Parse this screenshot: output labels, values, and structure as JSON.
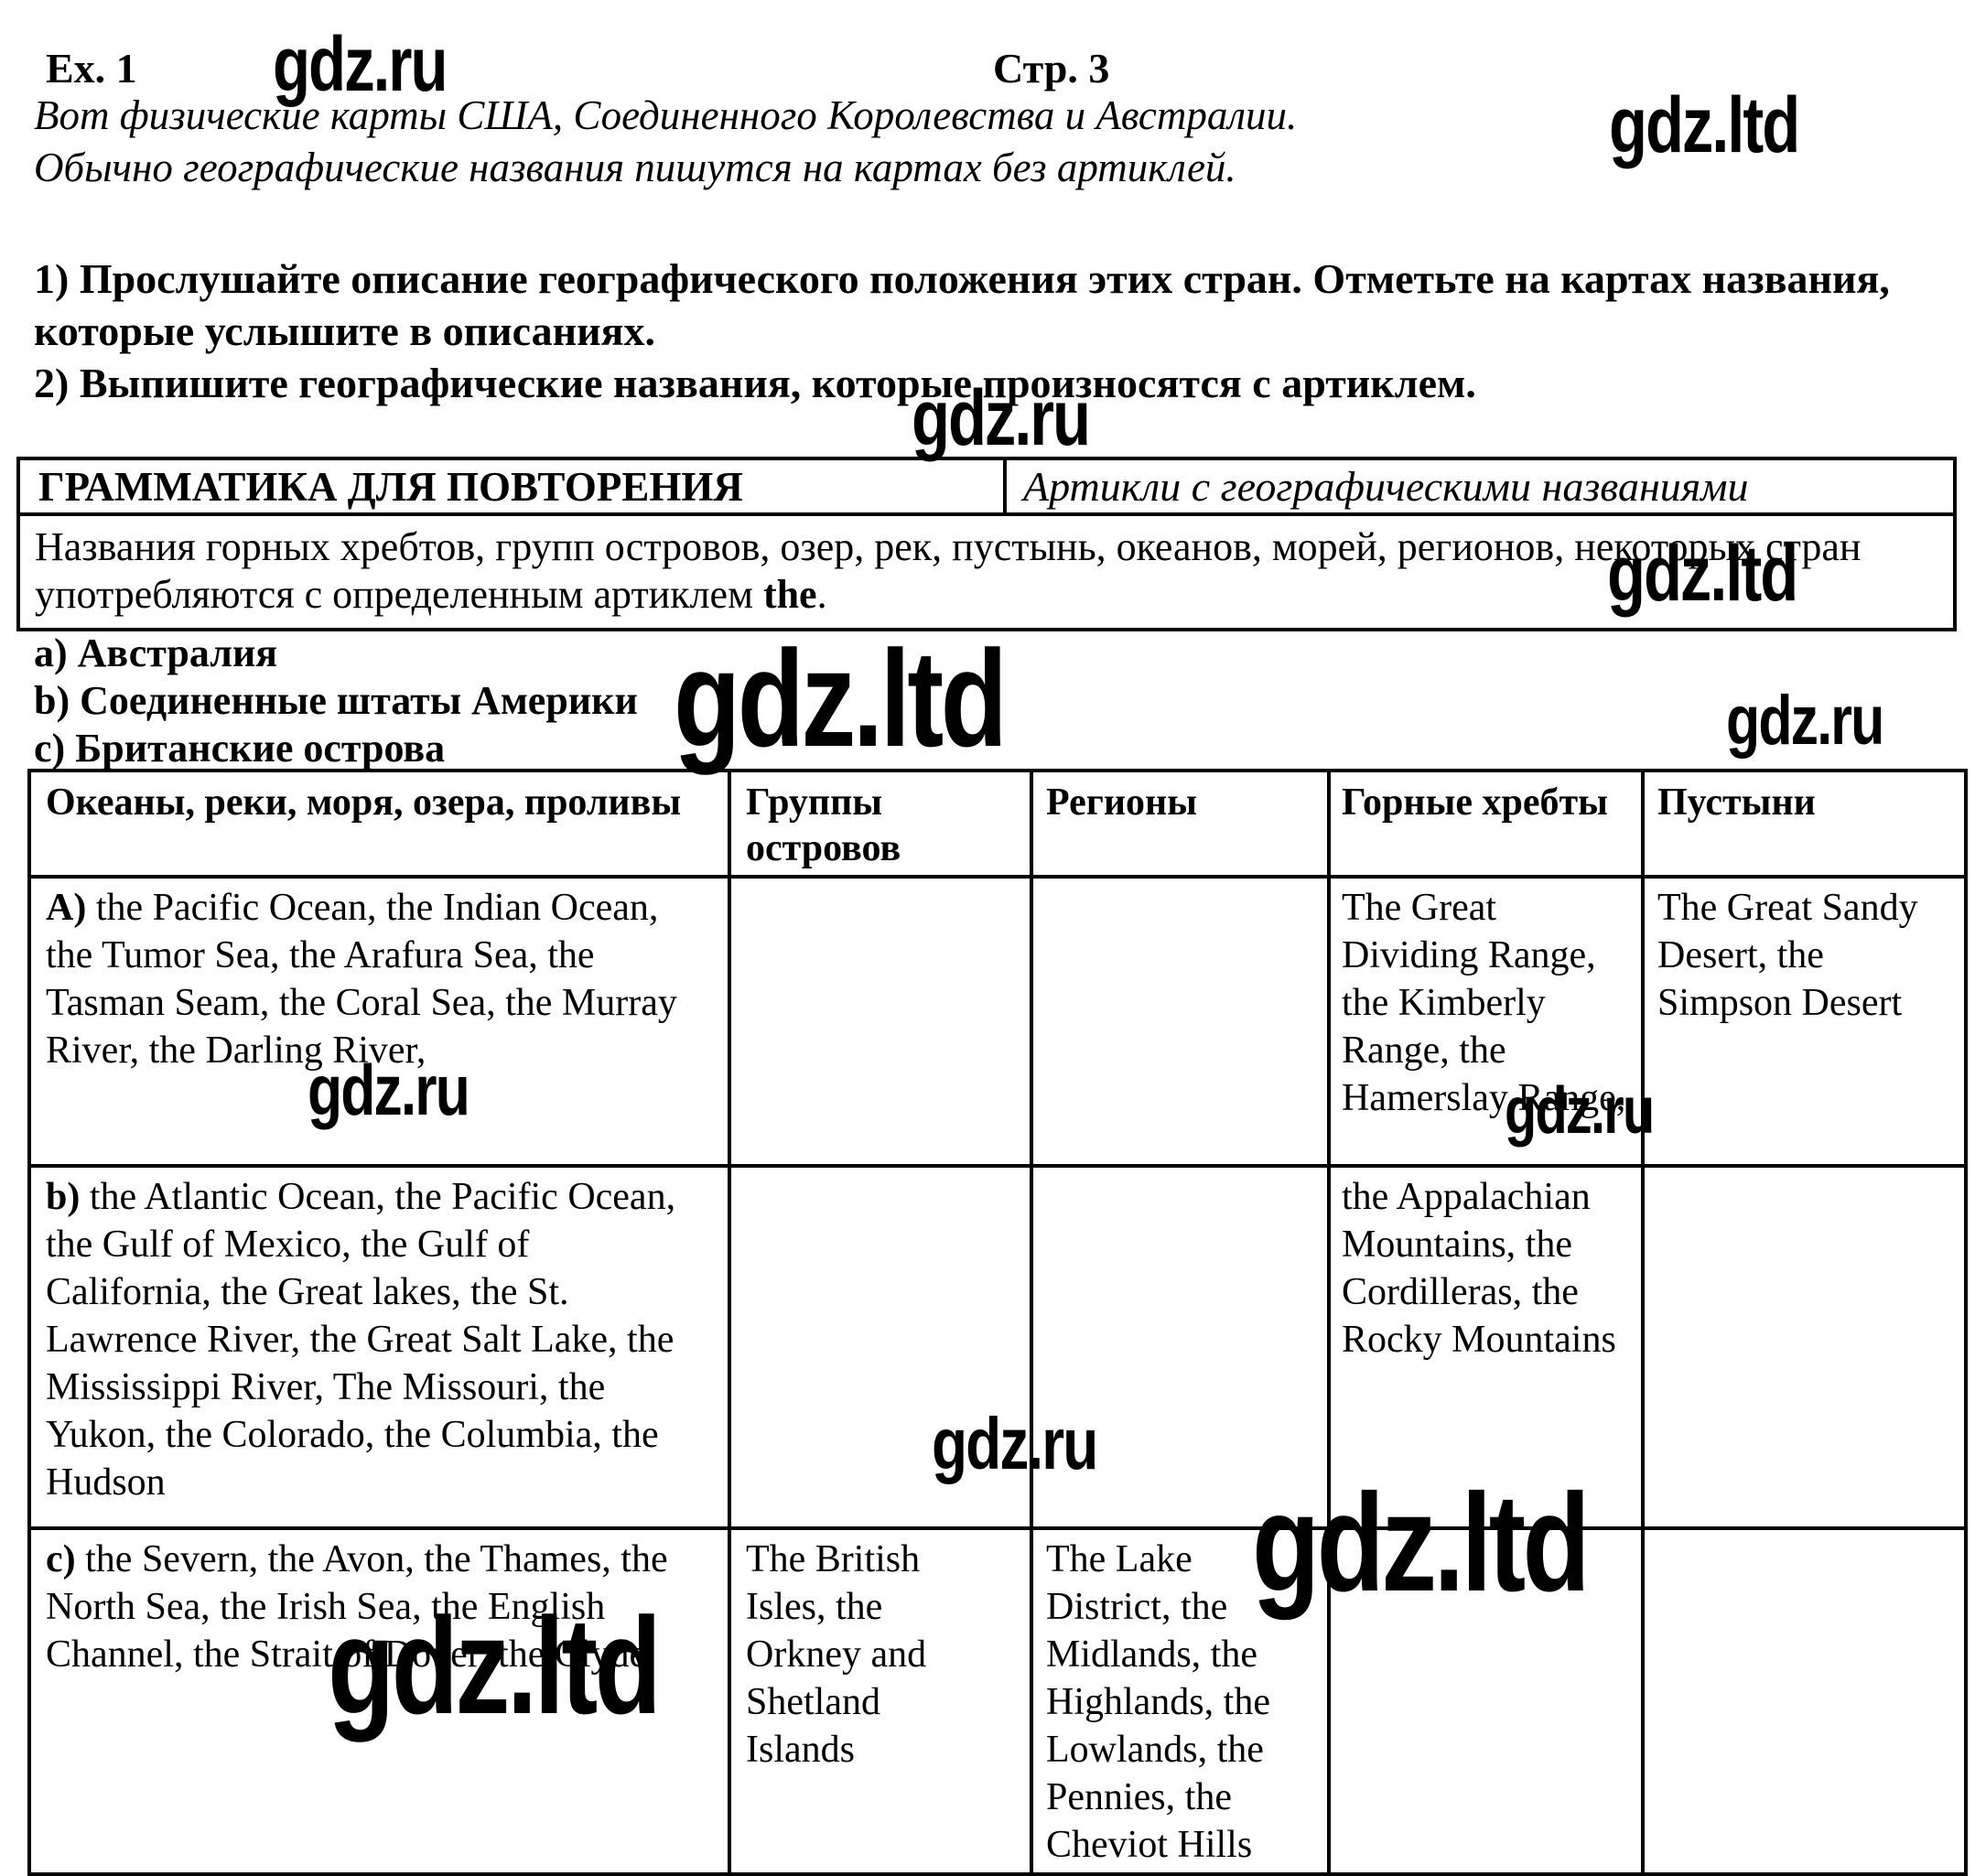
{
  "header": {
    "exercise": "Ex. 1",
    "page": "Стр. 3"
  },
  "intro": "Вот физические карты США, Соединенного Королевства и Австралии. Обычно географические названия пишутся на картах без артиклей.",
  "tasks": [
    "1) Прослушайте описание географического положения этих стран. Отметьте на картах названия, которые услышите в описаниях.",
    "2) Выпишите географические названия, которые произносятся с артиклем."
  ],
  "grammar_box": {
    "title": "ГРАММАТИКА ДЛЯ ПОВТОРЕНИЯ",
    "subtitle": "Артикли с географическими названиями",
    "body_main": "Названия горных хребтов, групп островов, озер, рек, пустынь, океанов, морей, регионов, некоторых стран употребляются с определенным артиклем",
    "body_bold": "the",
    "body_period": "."
  },
  "legend": [
    {
      "label": "a) Австралия"
    },
    {
      "label": "b) Соединенные штаты Америки"
    },
    {
      "label": "c) Британские острова"
    }
  ],
  "table": {
    "headers": [
      "Океаны, реки, моря, озера, проливы",
      "Группы островов",
      "Регионы",
      "Горные хребты",
      "Пустыни"
    ],
    "rows": [
      {
        "cells": [
          {
            "prefix": "A)",
            "text": "the Pacific Ocean, the Indian Ocean, the Tumor Sea, the Arafura Sea, the Tasman Seam, the Coral Sea, the Murray River, the Darling River,"
          },
          {
            "text": ""
          },
          {
            "text": ""
          },
          {
            "text": "The Great Dividing Range, the Kimberly Range, the Hamerslay Range,"
          },
          {
            "text": "The Great Sandy Desert, the Simpson Desert"
          }
        ]
      },
      {
        "cells": [
          {
            "prefix": "b)",
            "text": "the Atlantic Ocean, the Pacific Ocean, the Gulf of Mexico, the Gulf of California, the Great lakes, the St. Lawrence River, the Great Salt Lake, the Mississippi River, The Missouri, the Yukon, the Colorado, the Columbia, the Hudson"
          },
          {
            "text": ""
          },
          {
            "text": ""
          },
          {
            "text": "the Appalachian Mountains, the Cordilleras, the Rocky Mountains"
          },
          {
            "text": ""
          }
        ]
      },
      {
        "cells": [
          {
            "prefix": "c)",
            "text": "the Severn, the Avon, the Thames, the North Sea, the Irish Sea, the English Channel, the Strait of Dover, the Clyde"
          },
          {
            "text": "The British Isles, the Orkney and Shetland Islands"
          },
          {
            "text": "The Lake District, the Midlands, the Highlands, the Lowlands, the Pennies, the Cheviot Hills"
          },
          {
            "text": ""
          },
          {
            "text": ""
          }
        ]
      }
    ]
  },
  "watermarks": [
    {
      "text": "gdz.ru"
    },
    {
      "text": "gdz.ltd"
    },
    {
      "text": "gdz.ru"
    },
    {
      "text": "gdz.ltd"
    },
    {
      "text": "gdz.ltd"
    },
    {
      "text": "gdz.ru"
    },
    {
      "text": "gdz.ru"
    },
    {
      "text": "gdz.ru"
    },
    {
      "text": "gdz.ru"
    },
    {
      "text": "gdz.ltd"
    },
    {
      "text": "gdz.ltd"
    }
  ]
}
